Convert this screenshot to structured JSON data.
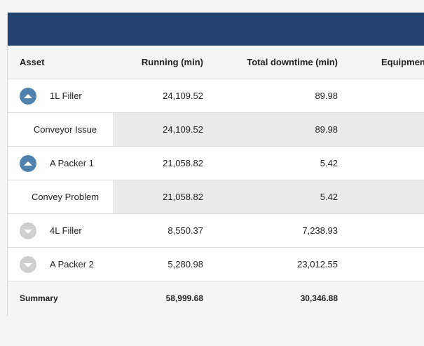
{
  "table": {
    "headers": {
      "asset": "Asset",
      "running": "Running (min)",
      "downtime": "Total downtime (min)",
      "equipment": "Equipment"
    },
    "rows": [
      {
        "asset": "1L Filler",
        "running": "24,109.52",
        "downtime": "89.98",
        "type": "parent",
        "expanded": true,
        "toggle_icon": "chevron-up-icon"
      },
      {
        "asset": "Conveyor Issue",
        "running": "24,109.52",
        "downtime": "89.98",
        "type": "child"
      },
      {
        "asset": "A Packer 1",
        "running": "21,058.82",
        "downtime": "5.42",
        "type": "parent",
        "expanded": true,
        "toggle_icon": "chevron-up-icon"
      },
      {
        "asset": "Convey Problem",
        "running": "21,058.82",
        "downtime": "5.42",
        "type": "child"
      },
      {
        "asset": "4L Filler",
        "running": "8,550.37",
        "downtime": "7,238.93",
        "type": "parent",
        "expanded": false,
        "toggle_icon": "chevron-down-icon"
      },
      {
        "asset": "A Packer 2",
        "running": "5,280.98",
        "downtime": "23,012.55",
        "type": "parent",
        "expanded": false,
        "toggle_icon": "chevron-down-icon"
      }
    ],
    "summary": {
      "label": "Summary",
      "running": "58,999.68",
      "downtime": "30,346.88"
    }
  },
  "colors": {
    "header_bar": "#224372",
    "toggle_expanded": "#4f83ad",
    "toggle_collapsed": "#cfcfcf",
    "child_shade": "#ebebeb"
  }
}
